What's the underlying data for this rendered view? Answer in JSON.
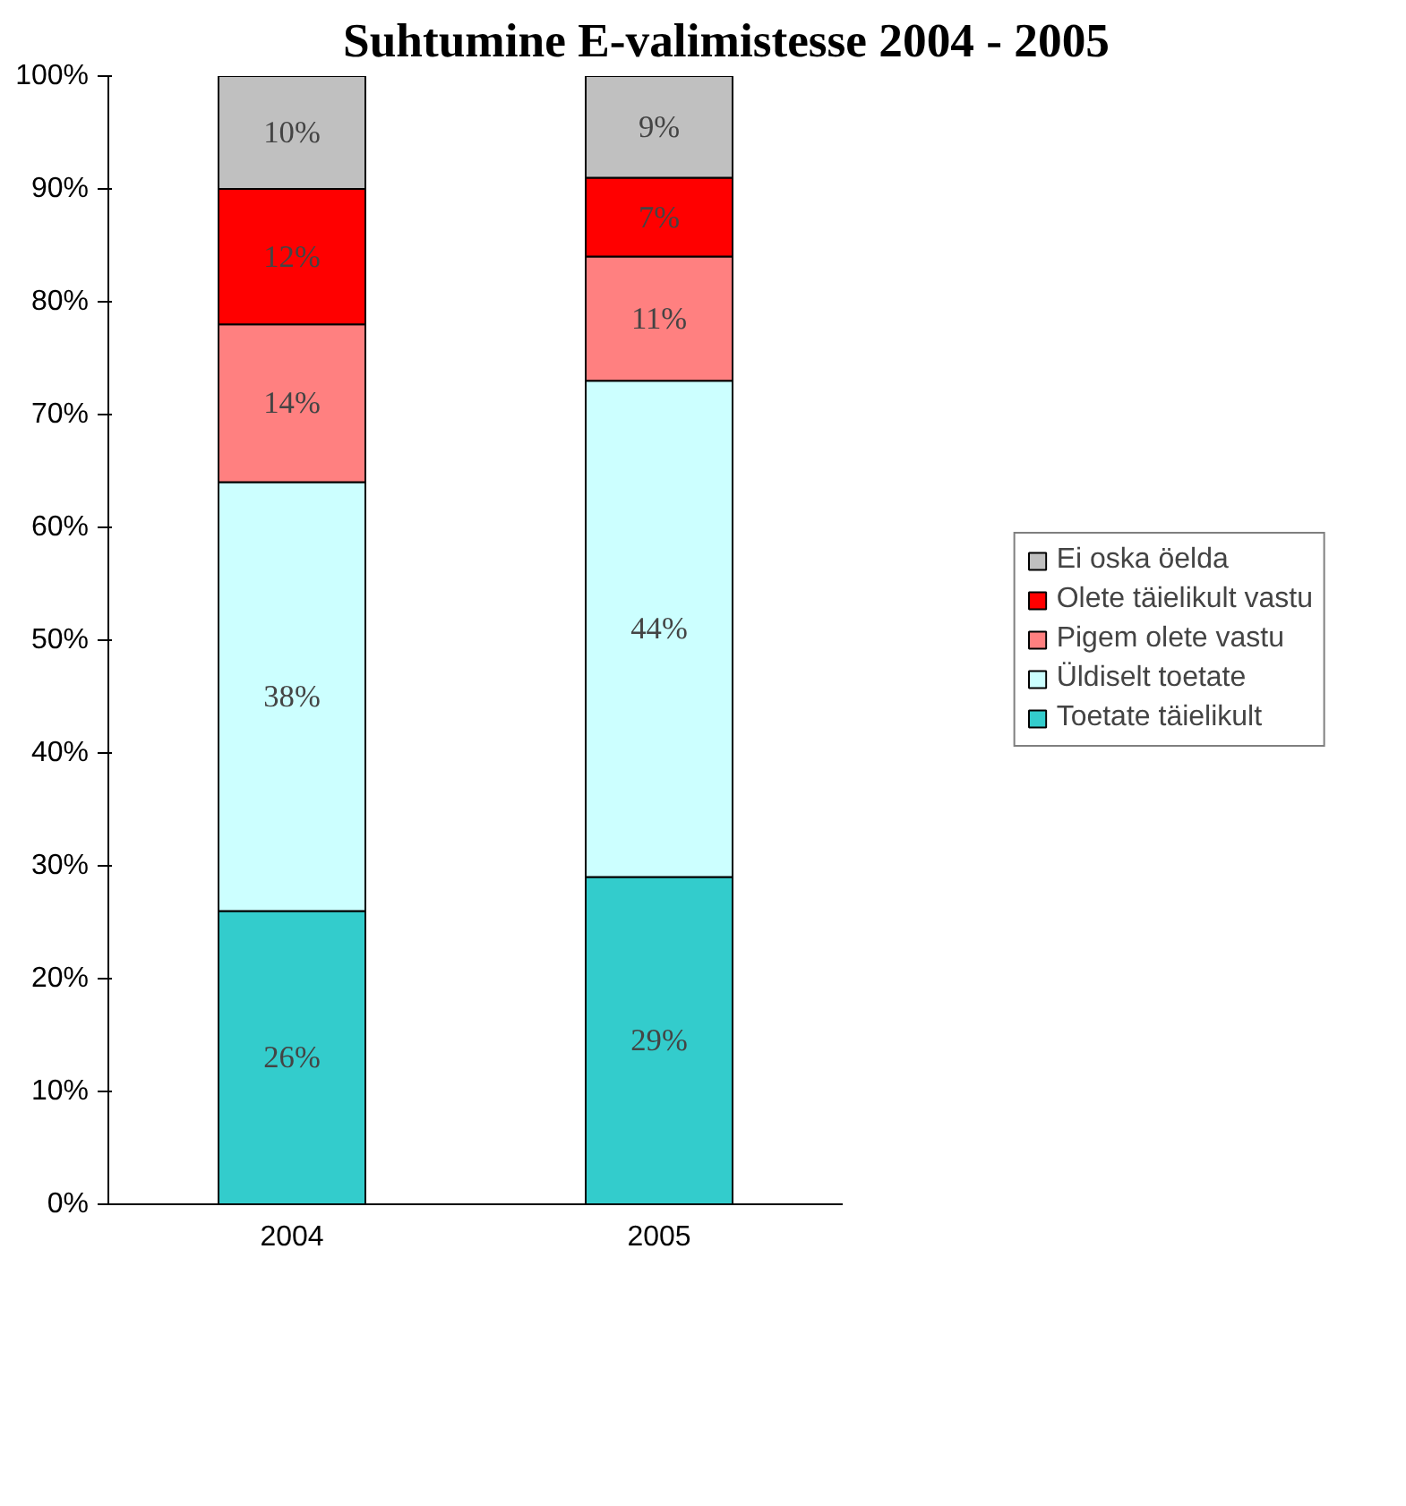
{
  "chart_data": {
    "type": "bar",
    "title": "Suhtumine E-valimistesse 2004 - 2005",
    "categories": [
      "2004",
      "2005"
    ],
    "stacked": true,
    "legend": "right",
    "grid": false,
    "ylim": [
      0,
      100
    ],
    "yticks": [
      {
        "value": 0,
        "label": "0%"
      },
      {
        "value": 10,
        "label": "10%"
      },
      {
        "value": 20,
        "label": "20%"
      },
      {
        "value": 30,
        "label": "30%"
      },
      {
        "value": 40,
        "label": "40%"
      },
      {
        "value": 50,
        "label": "50%"
      },
      {
        "value": 60,
        "label": "60%"
      },
      {
        "value": 70,
        "label": "70%"
      },
      {
        "value": 80,
        "label": "80%"
      },
      {
        "value": 90,
        "label": "90%"
      },
      {
        "value": 100,
        "label": "100%"
      }
    ],
    "series": [
      {
        "name": "Toetate täielikult",
        "color": "#33cccc",
        "values": [
          26,
          29
        ],
        "value_labels": [
          "26%",
          "29%"
        ]
      },
      {
        "name": "Üldiselt toetate",
        "color": "#ccffff",
        "values": [
          38,
          44
        ],
        "value_labels": [
          "38%",
          "44%"
        ]
      },
      {
        "name": "Pigem olete vastu",
        "color": "#ff8080",
        "values": [
          14,
          11
        ],
        "value_labels": [
          "14%",
          "11%"
        ]
      },
      {
        "name": "Olete täielikult vastu",
        "color": "#ff0000",
        "values": [
          12,
          7
        ],
        "value_labels": [
          "12%",
          "7%"
        ]
      },
      {
        "name": "Ei oska öelda",
        "color": "#c0c0c0",
        "values": [
          10,
          9
        ],
        "value_labels": [
          "10%",
          "9%"
        ]
      }
    ]
  }
}
